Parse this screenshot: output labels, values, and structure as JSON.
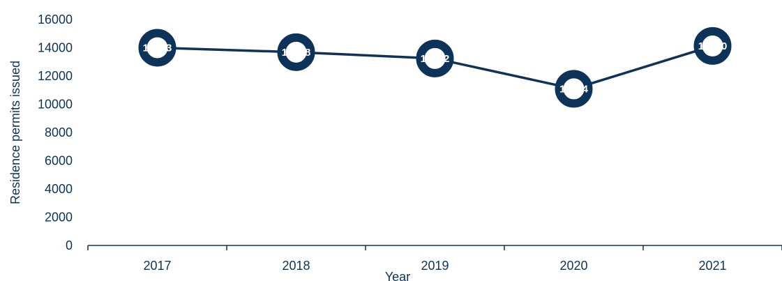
{
  "chart_data": {
    "type": "line",
    "title": "",
    "xlabel": "Year",
    "ylabel": "Residence permits issued",
    "categories": [
      "2017",
      "2018",
      "2019",
      "2020",
      "2021"
    ],
    "series": [
      {
        "values": [
          14003,
          13688,
          13242,
          11094,
          14130
        ]
      }
    ],
    "data_labels": [
      "14003",
      "13688",
      "13242",
      "11094",
      "14130"
    ],
    "y_ticks": [
      "0",
      "2000",
      "4000",
      "6000",
      "8000",
      "10000",
      "12000",
      "14000",
      "16000"
    ],
    "ylim": [
      0,
      16000
    ],
    "grid": false,
    "legend": "none",
    "colors": {
      "line": "#0d3359",
      "marker_inner": "#ffffff"
    }
  }
}
